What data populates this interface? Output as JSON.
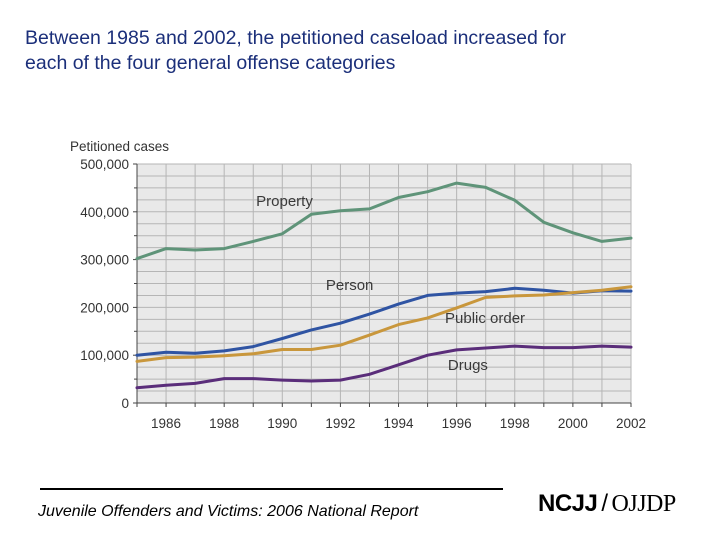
{
  "headline": {
    "line1": "Between 1985 and 2002, the petitioned caseload increased for",
    "line2": "each of the four general offense categories"
  },
  "footer": {
    "report_title": "Juvenile Offenders and Victims: 2006 National Report",
    "logo_left": "NCJJ",
    "logo_slash": "/",
    "logo_right": "OJJDP"
  },
  "colors": {
    "property": "#5f9479",
    "person": "#2f54a3",
    "public_order": "#c9973c",
    "drugs": "#5a2d7a",
    "grid": "#b5b5b5",
    "plot_background": "#e9e9e9",
    "headline": "#1b2f7a"
  },
  "chart_data": {
    "type": "line",
    "title": "",
    "ylabel": "Petitioned cases",
    "xlabel": "",
    "x": [
      1985,
      1986,
      1987,
      1988,
      1989,
      1990,
      1991,
      1992,
      1993,
      1994,
      1995,
      1996,
      1997,
      1998,
      1999,
      2000,
      2001,
      2002
    ],
    "xlim": [
      1985,
      2002
    ],
    "ylim": [
      0,
      500000
    ],
    "x_ticks": [
      1986,
      1988,
      1990,
      1992,
      1994,
      1996,
      1998,
      2000,
      2002
    ],
    "x_tick_labels": [
      "1986",
      "1988",
      "1990",
      "1992",
      "1994",
      "1996",
      "1998",
      "2000",
      "2002"
    ],
    "y_ticks": [
      0,
      100000,
      200000,
      300000,
      400000,
      500000
    ],
    "y_tick_labels": [
      "0",
      "100,000",
      "200,000",
      "300,000",
      "400,000",
      "500,000"
    ],
    "grid": true,
    "series": [
      {
        "name": "Property",
        "color_key": "property",
        "values": [
          302000,
          323000,
          320000,
          323000,
          338000,
          354000,
          395000,
          402000,
          406000,
          430000,
          442000,
          460000,
          451000,
          424000,
          378000,
          356000,
          338000,
          345000
        ]
      },
      {
        "name": "Person",
        "color_key": "person",
        "values": [
          100000,
          106000,
          104000,
          109000,
          118000,
          135000,
          153000,
          167000,
          186000,
          207000,
          225000,
          230000,
          233000,
          240000,
          236000,
          230000,
          235000,
          234000
        ]
      },
      {
        "name": "Public order",
        "color_key": "public_order",
        "values": [
          87000,
          95000,
          96000,
          99000,
          103000,
          112000,
          112000,
          121000,
          142000,
          164000,
          178000,
          199000,
          221000,
          224000,
          226000,
          231000,
          236000,
          243000
        ]
      },
      {
        "name": "Drugs",
        "color_key": "drugs",
        "values": [
          32000,
          37000,
          41000,
          51000,
          51000,
          48000,
          46000,
          48000,
          60000,
          80000,
          100000,
          111000,
          115000,
          119000,
          116000,
          116000,
          119000,
          117000
        ]
      }
    ]
  }
}
